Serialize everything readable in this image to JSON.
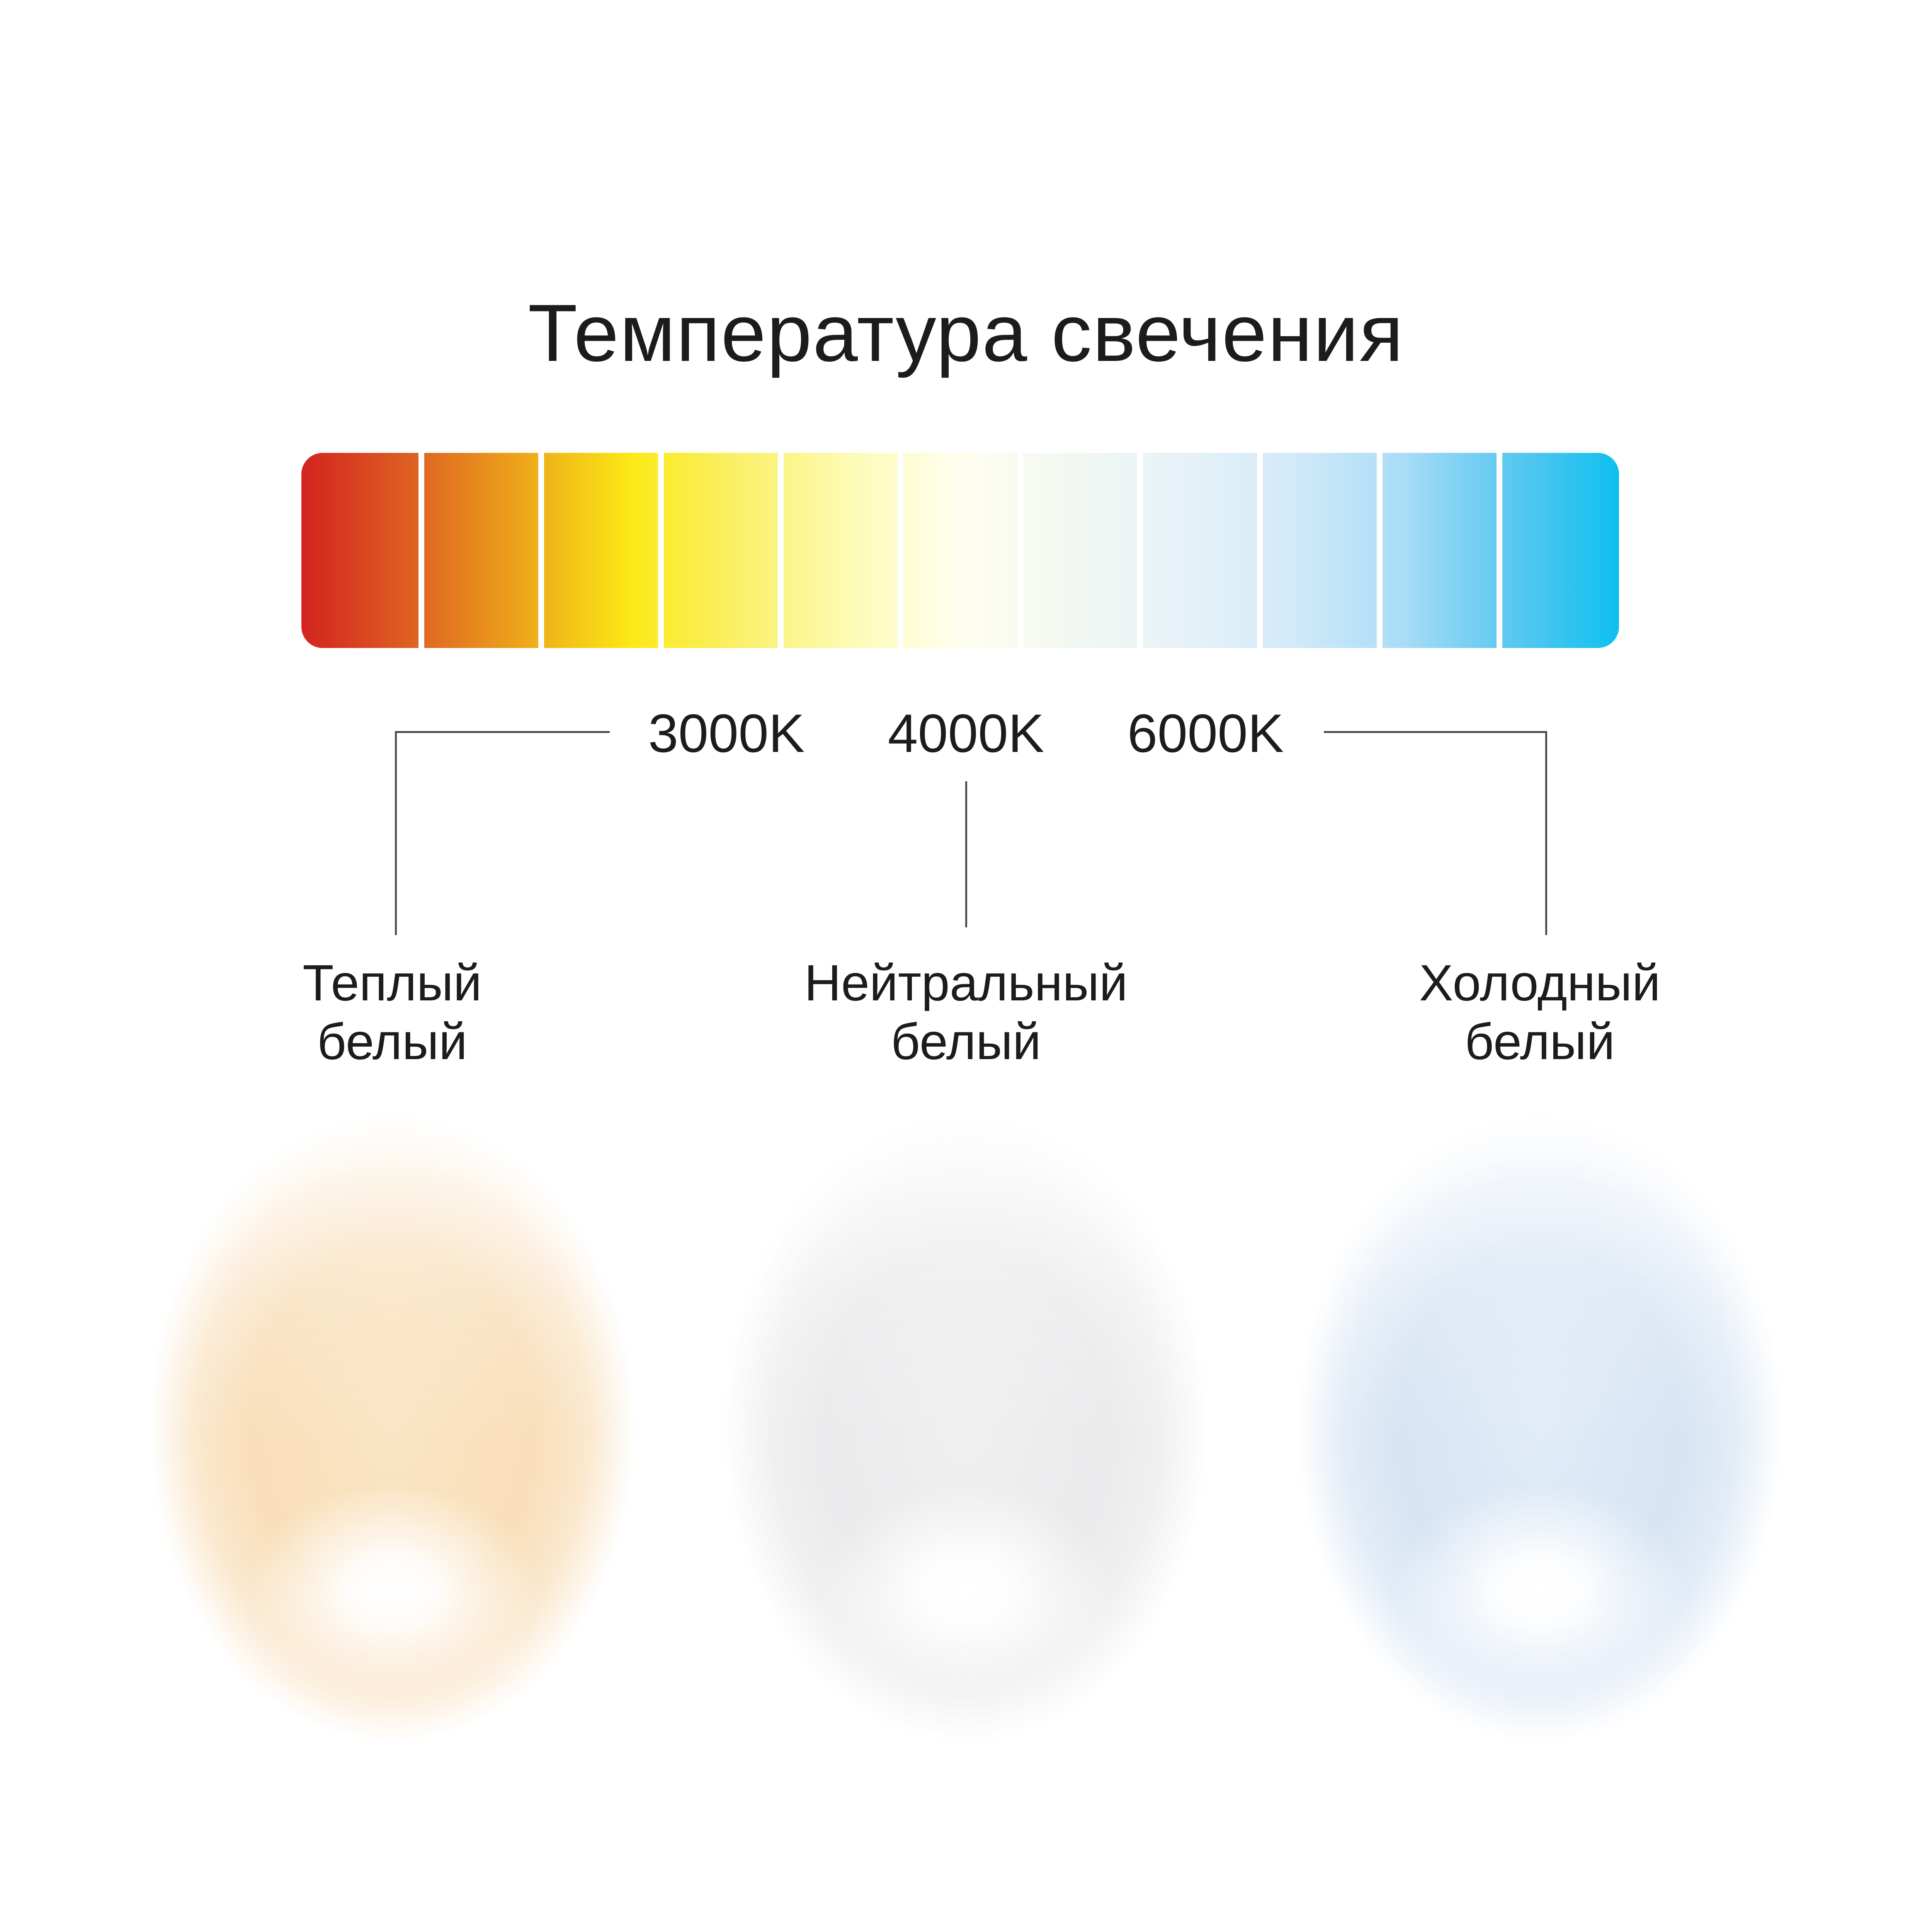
{
  "title": "Температура свечения",
  "scale_bar": {
    "segment_count": 11,
    "gradient_stops": [
      "#d22420",
      "#de6022",
      "#eda51a",
      "#fbe916",
      "#faf06a",
      "#fdfbb5",
      "#fffef0",
      "#f2f8f1",
      "#e7f2f8",
      "#d3eaf9",
      "#abddf7",
      "#5cc8f0",
      "#0fbfef"
    ],
    "tick_labels": [
      "3000K",
      "4000K",
      "6000K"
    ]
  },
  "categories": [
    {
      "id": "warm",
      "kelvin": "3000K",
      "label_line1": "Теплый",
      "label_line2": "белый",
      "glow_mid": "#fbe5c5",
      "glow_deep": "#f9deb9"
    },
    {
      "id": "neutral",
      "kelvin": "4000K",
      "label_line1": "Нейтральный",
      "label_line2": "белый",
      "glow_mid": "#f0f0f1",
      "glow_deep": "#eaeaec"
    },
    {
      "id": "cold",
      "kelvin": "6000K",
      "label_line1": "Холодный",
      "label_line2": "белый",
      "glow_mid": "#e1ecf8",
      "glow_deep": "#d7e4f3"
    }
  ],
  "colors": {
    "background": "#ffffff",
    "text": "#1c1c1c",
    "connector_line": "#4d4d4d",
    "divider": "#ffffff",
    "hotspot": "#ffffff"
  }
}
